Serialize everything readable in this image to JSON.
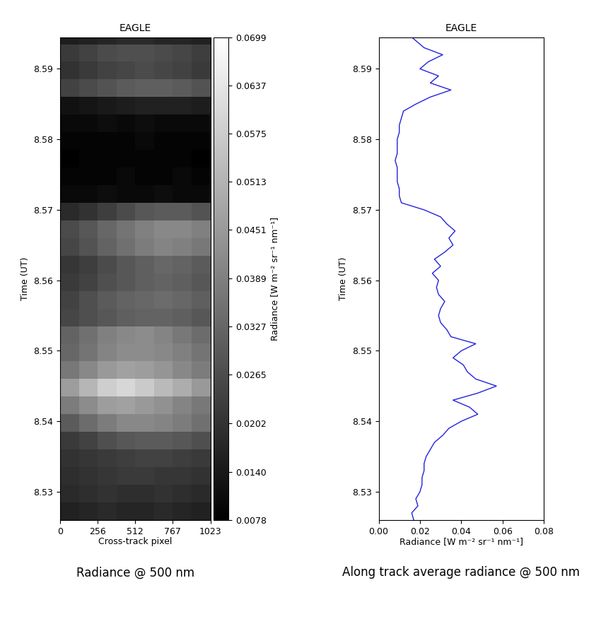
{
  "chart_data": [
    {
      "type": "heatmap",
      "title": "EAGLE",
      "x_label": "Cross-track pixel",
      "y_label": "Time (UT)",
      "caption": "Radiance @ 500 nm",
      "xlim": [
        0,
        1023
      ],
      "xticks": [
        0,
        256,
        512,
        767,
        1023
      ],
      "ylim": [
        8.526,
        8.5945
      ],
      "yticks": [
        8.53,
        8.54,
        8.55,
        8.56,
        8.57,
        8.58,
        8.59
      ],
      "x_edges": [
        0,
        128,
        256,
        384,
        512,
        640,
        767,
        895,
        1023
      ],
      "y_edges": [
        8.526,
        8.5285,
        8.531,
        8.5335,
        8.536,
        8.5385,
        8.541,
        8.5435,
        8.546,
        8.5485,
        8.551,
        8.5535,
        8.556,
        8.5585,
        8.561,
        8.5635,
        8.566,
        8.5685,
        8.571,
        8.5735,
        8.576,
        8.5785,
        8.581,
        8.5835,
        8.586,
        8.5885,
        8.591,
        8.5935,
        8.596
      ],
      "cells": [
        [
          0.016,
          0.017,
          0.018,
          0.017,
          0.017,
          0.018,
          0.017,
          0.016
        ],
        [
          0.018,
          0.019,
          0.02,
          0.019,
          0.019,
          0.02,
          0.019,
          0.018
        ],
        [
          0.019,
          0.02,
          0.021,
          0.022,
          0.022,
          0.021,
          0.021,
          0.02
        ],
        [
          0.02,
          0.021,
          0.022,
          0.023,
          0.024,
          0.024,
          0.023,
          0.022
        ],
        [
          0.022,
          0.024,
          0.027,
          0.029,
          0.03,
          0.03,
          0.029,
          0.027
        ],
        [
          0.03,
          0.034,
          0.038,
          0.041,
          0.041,
          0.04,
          0.038,
          0.035
        ],
        [
          0.038,
          0.042,
          0.046,
          0.047,
          0.045,
          0.043,
          0.04,
          0.037
        ],
        [
          0.046,
          0.052,
          0.058,
          0.06,
          0.057,
          0.053,
          0.05,
          0.045
        ],
        [
          0.037,
          0.041,
          0.045,
          0.047,
          0.046,
          0.044,
          0.041,
          0.038
        ],
        [
          0.033,
          0.036,
          0.04,
          0.042,
          0.042,
          0.041,
          0.039,
          0.036
        ],
        [
          0.032,
          0.035,
          0.039,
          0.041,
          0.042,
          0.04,
          0.037,
          0.034
        ],
        [
          0.025,
          0.027,
          0.029,
          0.031,
          0.032,
          0.032,
          0.031,
          0.029
        ],
        [
          0.024,
          0.027,
          0.03,
          0.032,
          0.033,
          0.034,
          0.033,
          0.031
        ],
        [
          0.022,
          0.024,
          0.027,
          0.029,
          0.031,
          0.032,
          0.031,
          0.029
        ],
        [
          0.021,
          0.023,
          0.026,
          0.029,
          0.031,
          0.033,
          0.032,
          0.03
        ],
        [
          0.025,
          0.028,
          0.032,
          0.035,
          0.038,
          0.04,
          0.039,
          0.037
        ],
        [
          0.026,
          0.029,
          0.033,
          0.036,
          0.039,
          0.041,
          0.041,
          0.039
        ],
        [
          0.018,
          0.02,
          0.023,
          0.026,
          0.029,
          0.03,
          0.03,
          0.028
        ],
        [
          0.01,
          0.01,
          0.011,
          0.01,
          0.01,
          0.011,
          0.01,
          0.01
        ],
        [
          0.009,
          0.009,
          0.009,
          0.01,
          0.009,
          0.009,
          0.01,
          0.009
        ],
        [
          0.008,
          0.009,
          0.009,
          0.009,
          0.009,
          0.009,
          0.009,
          0.008
        ],
        [
          0.009,
          0.009,
          0.009,
          0.009,
          0.01,
          0.009,
          0.009,
          0.009
        ],
        [
          0.01,
          0.01,
          0.011,
          0.01,
          0.011,
          0.01,
          0.01,
          0.01
        ],
        [
          0.012,
          0.013,
          0.014,
          0.015,
          0.016,
          0.016,
          0.016,
          0.015
        ],
        [
          0.024,
          0.026,
          0.028,
          0.03,
          0.031,
          0.031,
          0.03,
          0.028
        ],
        [
          0.02,
          0.022,
          0.024,
          0.025,
          0.026,
          0.025,
          0.024,
          0.022
        ],
        [
          0.022,
          0.024,
          0.026,
          0.027,
          0.027,
          0.026,
          0.025,
          0.023
        ],
        [
          0.015,
          0.016,
          0.017,
          0.018,
          0.018,
          0.017,
          0.017,
          0.016
        ]
      ],
      "color_label": "Radiance [W m⁻² sr⁻¹ nm⁻¹]",
      "color_range": [
        0.0078,
        0.0699
      ],
      "color_ticks": [
        0.0078,
        {
          "value": 0.014,
          "label": "0.0140"
        },
        0.0202,
        0.0265,
        0.0327,
        0.0389,
        0.0451,
        0.0513,
        0.0575,
        0.0637,
        0.0699
      ]
    },
    {
      "type": "line",
      "title": "EAGLE",
      "x_label": "Radiance [W m⁻² sr⁻¹ nm⁻¹]",
      "y_label": "Time (UT)",
      "caption": "Along track average radiance @ 500 nm",
      "color": "#2222dd",
      "xlim": [
        0,
        0.08
      ],
      "xticks": [
        {
          "value": 0,
          "label": "0.00"
        },
        {
          "value": 0.02,
          "label": "0.02"
        },
        {
          "value": 0.04,
          "label": "0.04"
        },
        {
          "value": 0.06,
          "label": "0.06"
        },
        {
          "value": 0.08,
          "label": "0.08"
        }
      ],
      "ylim": [
        8.526,
        8.5945
      ],
      "yticks": [
        8.53,
        8.54,
        8.55,
        8.56,
        8.57,
        8.58,
        8.59
      ],
      "y": [
        8.526,
        8.527,
        8.528,
        8.529,
        8.53,
        8.531,
        8.532,
        8.533,
        8.534,
        8.535,
        8.536,
        8.537,
        8.538,
        8.539,
        8.54,
        8.541,
        8.542,
        8.543,
        8.544,
        8.545,
        8.546,
        8.547,
        8.548,
        8.549,
        8.55,
        8.551,
        8.552,
        8.553,
        8.554,
        8.555,
        8.556,
        8.557,
        8.558,
        8.559,
        8.56,
        8.561,
        8.562,
        8.563,
        8.564,
        8.565,
        8.566,
        8.567,
        8.568,
        8.569,
        8.57,
        8.571,
        8.572,
        8.573,
        8.574,
        8.575,
        8.576,
        8.577,
        8.578,
        8.579,
        8.58,
        8.581,
        8.582,
        8.583,
        8.584,
        8.585,
        8.586,
        8.587,
        8.588,
        8.589,
        8.59,
        8.591,
        8.592,
        8.593,
        8.594,
        8.5945
      ],
      "x": [
        0.017,
        0.016,
        0.019,
        0.018,
        0.02,
        0.021,
        0.021,
        0.022,
        0.022,
        0.023,
        0.025,
        0.027,
        0.031,
        0.034,
        0.04,
        0.048,
        0.044,
        0.036,
        0.048,
        0.057,
        0.047,
        0.043,
        0.041,
        0.036,
        0.04,
        0.047,
        0.035,
        0.033,
        0.03,
        0.029,
        0.03,
        0.032,
        0.029,
        0.028,
        0.029,
        0.026,
        0.03,
        0.027,
        0.032,
        0.036,
        0.034,
        0.037,
        0.033,
        0.03,
        0.022,
        0.011,
        0.01,
        0.01,
        0.009,
        0.009,
        0.009,
        0.008,
        0.009,
        0.009,
        0.009,
        0.01,
        0.01,
        0.011,
        0.012,
        0.018,
        0.025,
        0.035,
        0.025,
        0.029,
        0.02,
        0.024,
        0.031,
        0.022,
        0.018,
        0.016
      ]
    }
  ]
}
